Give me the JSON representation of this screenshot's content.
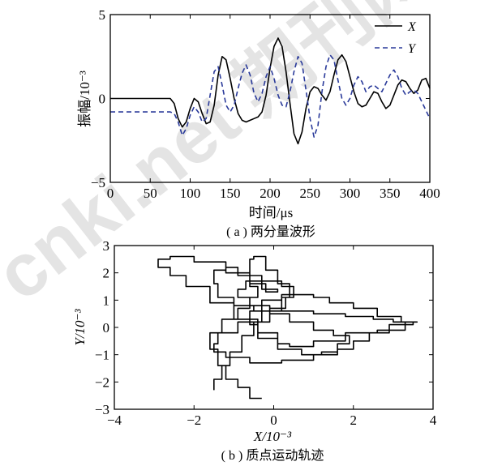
{
  "watermark": "cnki.net 期刊网",
  "chart_data": [
    {
      "type": "line",
      "caption": "( a ) 两分量波形",
      "xlabel": "时间/μs",
      "ylabel": "振幅/10⁻³",
      "xlim": [
        0,
        400
      ],
      "ylim": [
        -5,
        5
      ],
      "xticks": [
        0,
        50,
        100,
        150,
        200,
        250,
        300,
        350,
        400
      ],
      "yticks": [
        5,
        0,
        -5
      ],
      "legend_position": "top-right",
      "series": [
        {
          "name": "X",
          "style": "solid",
          "color": "#000000",
          "x": [
            0,
            75,
            80,
            85,
            90,
            95,
            100,
            105,
            110,
            115,
            120,
            125,
            130,
            135,
            140,
            145,
            150,
            155,
            160,
            165,
            170,
            175,
            180,
            185,
            190,
            195,
            200,
            205,
            210,
            215,
            220,
            225,
            230,
            235,
            240,
            245,
            250,
            255,
            260,
            265,
            270,
            275,
            280,
            285,
            290,
            295,
            300,
            305,
            310,
            315,
            320,
            325,
            330,
            335,
            340,
            345,
            350,
            355,
            360,
            365,
            370,
            375,
            380,
            385,
            390,
            395,
            400
          ],
          "y": [
            0,
            0,
            -0.3,
            -1.2,
            -1.7,
            -1.4,
            -0.6,
            0,
            -0.2,
            -0.9,
            -1.5,
            -1.4,
            -0.4,
            1.4,
            2.5,
            2.3,
            1.2,
            0,
            -0.9,
            -1.3,
            -1.4,
            -1.3,
            -1.2,
            -1.1,
            -0.8,
            0.2,
            1.8,
            3.1,
            3.6,
            3.1,
            1.6,
            -0.3,
            -2.1,
            -2.7,
            -2.0,
            -0.6,
            0.4,
            0.7,
            0.6,
            0.2,
            -0.1,
            0.4,
            1.4,
            2.3,
            2.6,
            2.2,
            1.3,
            0.4,
            -0.3,
            -0.5,
            -0.4,
            0,
            0.4,
            0.3,
            -0.2,
            -0.6,
            -0.4,
            0.2,
            0.8,
            1.1,
            1.0,
            0.6,
            0.3,
            0.5,
            1.1,
            1.2,
            0.6
          ]
        },
        {
          "name": "Y",
          "style": "dashed",
          "color": "#2a3a9a",
          "x": [
            0,
            75,
            80,
            85,
            90,
            95,
            100,
            105,
            110,
            115,
            120,
            125,
            130,
            135,
            140,
            145,
            150,
            155,
            160,
            165,
            170,
            175,
            180,
            185,
            190,
            195,
            200,
            205,
            210,
            215,
            220,
            225,
            230,
            235,
            240,
            245,
            250,
            255,
            260,
            265,
            270,
            275,
            280,
            285,
            290,
            295,
            300,
            305,
            310,
            315,
            320,
            325,
            330,
            335,
            340,
            345,
            350,
            355,
            360,
            365,
            370,
            375,
            380,
            385,
            390,
            395,
            400
          ],
          "y": [
            -0.8,
            -0.8,
            -0.9,
            -1.4,
            -2.2,
            -1.8,
            -1.0,
            -0.5,
            -0.8,
            -1.4,
            -1.2,
            0.2,
            1.6,
            1.9,
            0.8,
            -0.4,
            -0.8,
            -0.4,
            0.6,
            1.5,
            2.0,
            1.4,
            0.3,
            -0.2,
            0.3,
            1.3,
            1.9,
            1.2,
            0.2,
            -0.4,
            -0.5,
            0.4,
            1.6,
            2.5,
            2.1,
            0.5,
            -1.2,
            -2.3,
            -1.6,
            0.4,
            1.9,
            2.6,
            2.3,
            1.1,
            0,
            -0.4,
            0,
            0.8,
            1.3,
            1.0,
            0.4,
            0.7,
            0.8,
            0.6,
            0.4,
            0.9,
            1.4,
            1.7,
            1.3,
            0.6,
            0.2,
            0.4,
            0.5,
            0.3,
            -0.2,
            -0.7,
            -1.2
          ]
        }
      ]
    },
    {
      "type": "line",
      "caption": "( b ) 质点运动轨迹",
      "xlabel": "X/10⁻³",
      "ylabel": "Y/10⁻³",
      "xlim": [
        -4,
        4
      ],
      "ylim": [
        -3,
        3
      ],
      "xticks": [
        -4,
        -2,
        0,
        2,
        4
      ],
      "yticks": [
        3,
        2,
        1,
        0,
        -1,
        -2,
        -3
      ],
      "series": [
        {
          "name": "",
          "color": "#000000",
          "step": true,
          "x": [
            -0.3,
            -0.6,
            -0.9,
            -1.2,
            -1.4,
            -1.6,
            -1.3,
            -0.9,
            -0.6,
            -0.4,
            -0.6,
            -0.9,
            -1.2,
            -1.5,
            -1.4,
            -1.0,
            -0.5,
            0.2,
            1.0,
            1.8,
            2.5,
            3.0,
            3.5,
            3.3,
            2.6,
            1.8,
            1.0,
            0.4,
            0.1,
            -0.4,
            -1.0,
            -1.6,
            -2.2,
            -2.6,
            -2.9,
            -2.6,
            -2.0,
            -1.2,
            -0.6,
            -0.2,
            0.1,
            -0.3,
            -0.6,
            -0.5,
            -0.2,
            0.1,
            0.4,
            0.2,
            -0.3,
            -0.9,
            -1.4,
            -1.5,
            -1.2,
            -0.6,
            0.2,
            1.0,
            1.6,
            2.0,
            2.4,
            2.9,
            3.3,
            3.6,
            3.2,
            2.6,
            2.0,
            1.4,
            1.0,
            0.6,
            0.2,
            -0.3,
            -0.6,
            -0.4,
            0.1,
            0.7,
            1.2,
            1.6,
            1.9,
            1.5,
            1.0,
            0.4,
            -0.1,
            -0.6,
            -0.9,
            -0.7,
            -0.3,
            0.2,
            0.5,
            0.3,
            -0.1,
            -0.5,
            -0.8,
            -1.1,
            -1.3,
            -1.5
          ],
          "y": [
            -2.6,
            -2.2,
            -1.9,
            -1.4,
            -0.8,
            -0.2,
            0.3,
            0.7,
            1.1,
            1.5,
            1.9,
            2.2,
            2.1,
            1.6,
            1.1,
            0.8,
            0.6,
            0.6,
            0.5,
            0.4,
            0.3,
            0.2,
            0.1,
            -0.1,
            -0.2,
            -0.5,
            -0.7,
            -0.6,
            -0.2,
            0.3,
            0.9,
            1.5,
            1.9,
            2.2,
            2.5,
            2.6,
            2.4,
            2.0,
            1.6,
            1.3,
            1.4,
            1.9,
            2.5,
            2.6,
            2.1,
            1.6,
            1.1,
            0.6,
            0.2,
            -0.2,
            -0.6,
            -0.9,
            -1.1,
            -1.3,
            -1.2,
            -1.0,
            -0.8,
            -0.5,
            -0.2,
            0.1,
            0.2,
            0.2,
            0.4,
            0.7,
            0.9,
            1.1,
            1.2,
            1.2,
            1.0,
            0.6,
            0.1,
            -0.4,
            -0.8,
            -1.0,
            -0.9,
            -0.6,
            -0.3,
            -0.1,
            0.2,
            0.5,
            0.8,
            1.1,
            1.4,
            1.7,
            1.7,
            1.5,
            1.1,
            0.7,
            0.2,
            -0.3,
            -0.9,
            -1.4,
            -1.9,
            -2.3
          ]
        }
      ]
    }
  ]
}
